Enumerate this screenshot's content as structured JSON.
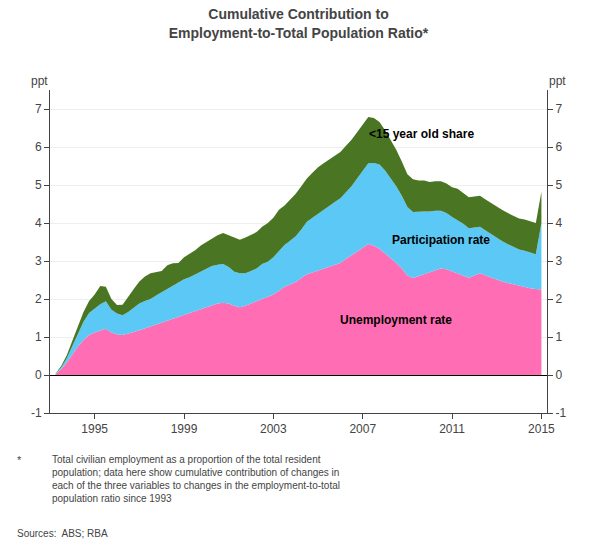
{
  "chart_data": {
    "type": "area",
    "stacked": true,
    "title": "Cumulative Contribution to\nEmployment-to-Total Population Ratio*",
    "ylabel": "ppt",
    "y2label": "ppt",
    "xlim": [
      1993.0,
      2015.25
    ],
    "xticks": [
      1995,
      1999,
      2003,
      2007,
      2011,
      2015
    ],
    "ylim": [
      -1,
      7.5
    ],
    "yticks": [
      -1,
      0,
      1,
      2,
      3,
      4,
      5,
      6,
      7
    ],
    "y2lim": [
      -1,
      7.5
    ],
    "y2ticks": [
      -1,
      0,
      1,
      2,
      3,
      4,
      5,
      6,
      7
    ],
    "grid": true,
    "x": [
      1993.25,
      1993.5,
      1993.75,
      1994.0,
      1994.25,
      1994.5,
      1994.75,
      1995.0,
      1995.25,
      1995.5,
      1995.75,
      1996.0,
      1996.25,
      1996.5,
      1996.75,
      1997.0,
      1997.25,
      1997.5,
      1997.75,
      1998.0,
      1998.25,
      1998.5,
      1998.75,
      1999.0,
      1999.25,
      1999.5,
      1999.75,
      2000.0,
      2000.25,
      2000.5,
      2000.75,
      2001.0,
      2001.25,
      2001.5,
      2001.75,
      2002.0,
      2002.25,
      2002.5,
      2002.75,
      2003.0,
      2003.25,
      2003.5,
      2003.75,
      2004.0,
      2004.25,
      2004.5,
      2004.75,
      2005.0,
      2005.25,
      2005.5,
      2005.75,
      2006.0,
      2006.25,
      2006.5,
      2006.75,
      2007.0,
      2007.25,
      2007.5,
      2007.75,
      2008.0,
      2008.25,
      2008.5,
      2008.75,
      2009.0,
      2009.25,
      2009.5,
      2009.75,
      2010.0,
      2010.25,
      2010.5,
      2010.75,
      2011.0,
      2011.25,
      2011.5,
      2011.75,
      2012.0,
      2012.25,
      2012.5,
      2012.75,
      2013.0,
      2013.25,
      2013.5,
      2013.75,
      2014.0,
      2014.25,
      2014.5,
      2014.75,
      2015.0
    ],
    "series": [
      {
        "name": "Unemployment rate",
        "color": "#FF6EB4",
        "values": [
          0.02,
          0.15,
          0.32,
          0.55,
          0.75,
          0.92,
          1.05,
          1.12,
          1.18,
          1.22,
          1.12,
          1.07,
          1.05,
          1.08,
          1.13,
          1.18,
          1.23,
          1.28,
          1.33,
          1.38,
          1.45,
          1.5,
          1.55,
          1.6,
          1.65,
          1.7,
          1.75,
          1.8,
          1.85,
          1.88,
          1.9,
          1.88,
          1.82,
          1.78,
          1.82,
          1.88,
          1.94,
          2.0,
          2.06,
          2.12,
          2.22,
          2.32,
          2.38,
          2.45,
          2.55,
          2.65,
          2.7,
          2.75,
          2.8,
          2.85,
          2.9,
          2.95,
          3.05,
          3.15,
          3.25,
          3.35,
          3.45,
          3.4,
          3.32,
          3.2,
          3.08,
          2.95,
          2.8,
          2.62,
          2.55,
          2.6,
          2.65,
          2.7,
          2.76,
          2.8,
          2.78,
          2.72,
          2.68,
          2.62,
          2.56,
          2.62,
          2.68,
          2.62,
          2.56,
          2.5,
          2.46,
          2.42,
          2.38,
          2.34,
          2.32,
          2.28,
          2.26,
          2.25
        ]
      },
      {
        "name": "Participation rate",
        "color": "#5BC8F5",
        "values": [
          0.01,
          0.05,
          0.12,
          0.22,
          0.35,
          0.48,
          0.58,
          0.62,
          0.68,
          0.72,
          0.6,
          0.55,
          0.52,
          0.58,
          0.65,
          0.7,
          0.72,
          0.72,
          0.76,
          0.8,
          0.82,
          0.86,
          0.88,
          0.92,
          0.92,
          0.94,
          0.98,
          0.98,
          1.02,
          1.02,
          1.02,
          0.96,
          0.9,
          0.9,
          0.86,
          0.86,
          0.86,
          0.92,
          0.92,
          0.98,
          1.05,
          1.1,
          1.15,
          1.2,
          1.28,
          1.38,
          1.44,
          1.5,
          1.55,
          1.6,
          1.65,
          1.7,
          1.76,
          1.82,
          1.92,
          2.02,
          2.12,
          2.18,
          2.22,
          2.18,
          2.1,
          2.02,
          1.92,
          1.8,
          1.74,
          1.7,
          1.65,
          1.6,
          1.56,
          1.52,
          1.48,
          1.44,
          1.4,
          1.36,
          1.3,
          1.26,
          1.22,
          1.18,
          1.14,
          1.1,
          1.06,
          1.02,
          0.98,
          0.96,
          0.95,
          0.94,
          0.92,
          1.75
        ]
      },
      {
        "name": "<15 year old share",
        "color": "#4A7623",
        "values": [
          0.01,
          0.04,
          0.08,
          0.14,
          0.2,
          0.26,
          0.32,
          0.38,
          0.48,
          0.38,
          0.28,
          0.22,
          0.28,
          0.38,
          0.48,
          0.58,
          0.64,
          0.68,
          0.62,
          0.56,
          0.62,
          0.58,
          0.52,
          0.58,
          0.62,
          0.64,
          0.68,
          0.72,
          0.74,
          0.78,
          0.82,
          0.84,
          0.88,
          0.88,
          0.94,
          0.94,
          0.96,
          0.98,
          1.02,
          1.04,
          1.08,
          1.04,
          1.08,
          1.12,
          1.14,
          1.14,
          1.18,
          1.22,
          1.22,
          1.22,
          1.22,
          1.22,
          1.22,
          1.22,
          1.22,
          1.22,
          1.22,
          1.18,
          1.12,
          1.06,
          1.0,
          0.96,
          0.9,
          0.86,
          0.86,
          0.82,
          0.82,
          0.78,
          0.78,
          0.78,
          0.78,
          0.78,
          0.82,
          0.82,
          0.82,
          0.82,
          0.82,
          0.82,
          0.82,
          0.82,
          0.82,
          0.82,
          0.82,
          0.82,
          0.82,
          0.82,
          0.82,
          0.82
        ]
      }
    ],
    "annotations": [
      {
        "text": "Unemployment rate",
        "x": 2008.5,
        "y": 1.45
      },
      {
        "text": "Participation rate",
        "x": 2010.5,
        "y": 3.55
      },
      {
        "text": "<15 year old share",
        "x": 2007.2,
        "y": 6.35
      }
    ],
    "footnote_marker": "*",
    "footnote": "Total civilian employment as a proportion of the total resident\npopulation; data here show cumulative contribution of changes in\neach of the three variables to changes in the employment-to-total\npopulation ratio since 1993",
    "sources": "Sources:  ABS; RBA"
  }
}
